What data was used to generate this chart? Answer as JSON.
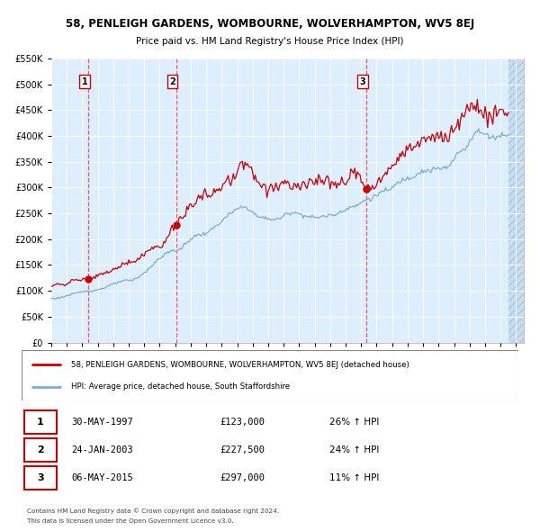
{
  "title": "58, PENLEIGH GARDENS, WOMBOURNE, WOLVERHAMPTON, WV5 8EJ",
  "subtitle": "Price paid vs. HM Land Registry's House Price Index (HPI)",
  "legend_line1": "58, PENLEIGH GARDENS, WOMBOURNE, WOLVERHAMPTON, WV5 8EJ (detached house)",
  "legend_line2": "HPI: Average price, detached house, South Staffordshire",
  "transactions": [
    {
      "num": 1,
      "date": "30-MAY-1997",
      "price": 123000,
      "pct": "26%",
      "dir": "↑"
    },
    {
      "num": 2,
      "date": "24-JAN-2003",
      "price": 227500,
      "pct": "24%",
      "dir": "↑"
    },
    {
      "num": 3,
      "date": "06-MAY-2015",
      "price": 297000,
      "pct": "11%",
      "dir": "↑"
    }
  ],
  "transaction_dates_decimal": [
    1997.41,
    2003.07,
    2015.35
  ],
  "transaction_prices": [
    123000,
    227500,
    297000
  ],
  "footer1": "Contains HM Land Registry data © Crown copyright and database right 2024.",
  "footer2": "This data is licensed under the Open Government Licence v3.0.",
  "hpi_color": "#7bafd4",
  "price_color": "#cc0000",
  "dot_color": "#cc0000",
  "vline_color": "#ff4444",
  "background_color": "#ddeeff",
  "hatch_color": "#b0c8e8",
  "ylim": [
    0,
    550000
  ],
  "xlim_start": 1995.0,
  "xlim_end": 2025.5,
  "yticks": [
    0,
    50000,
    100000,
    150000,
    200000,
    250000,
    300000,
    350000,
    400000,
    450000,
    500000,
    550000
  ],
  "xticks": [
    1995,
    1996,
    1997,
    1998,
    1999,
    2000,
    2001,
    2002,
    2003,
    2004,
    2005,
    2006,
    2007,
    2008,
    2009,
    2010,
    2011,
    2012,
    2013,
    2014,
    2015,
    2016,
    2017,
    2018,
    2019,
    2020,
    2021,
    2022,
    2023,
    2024,
    2025
  ]
}
